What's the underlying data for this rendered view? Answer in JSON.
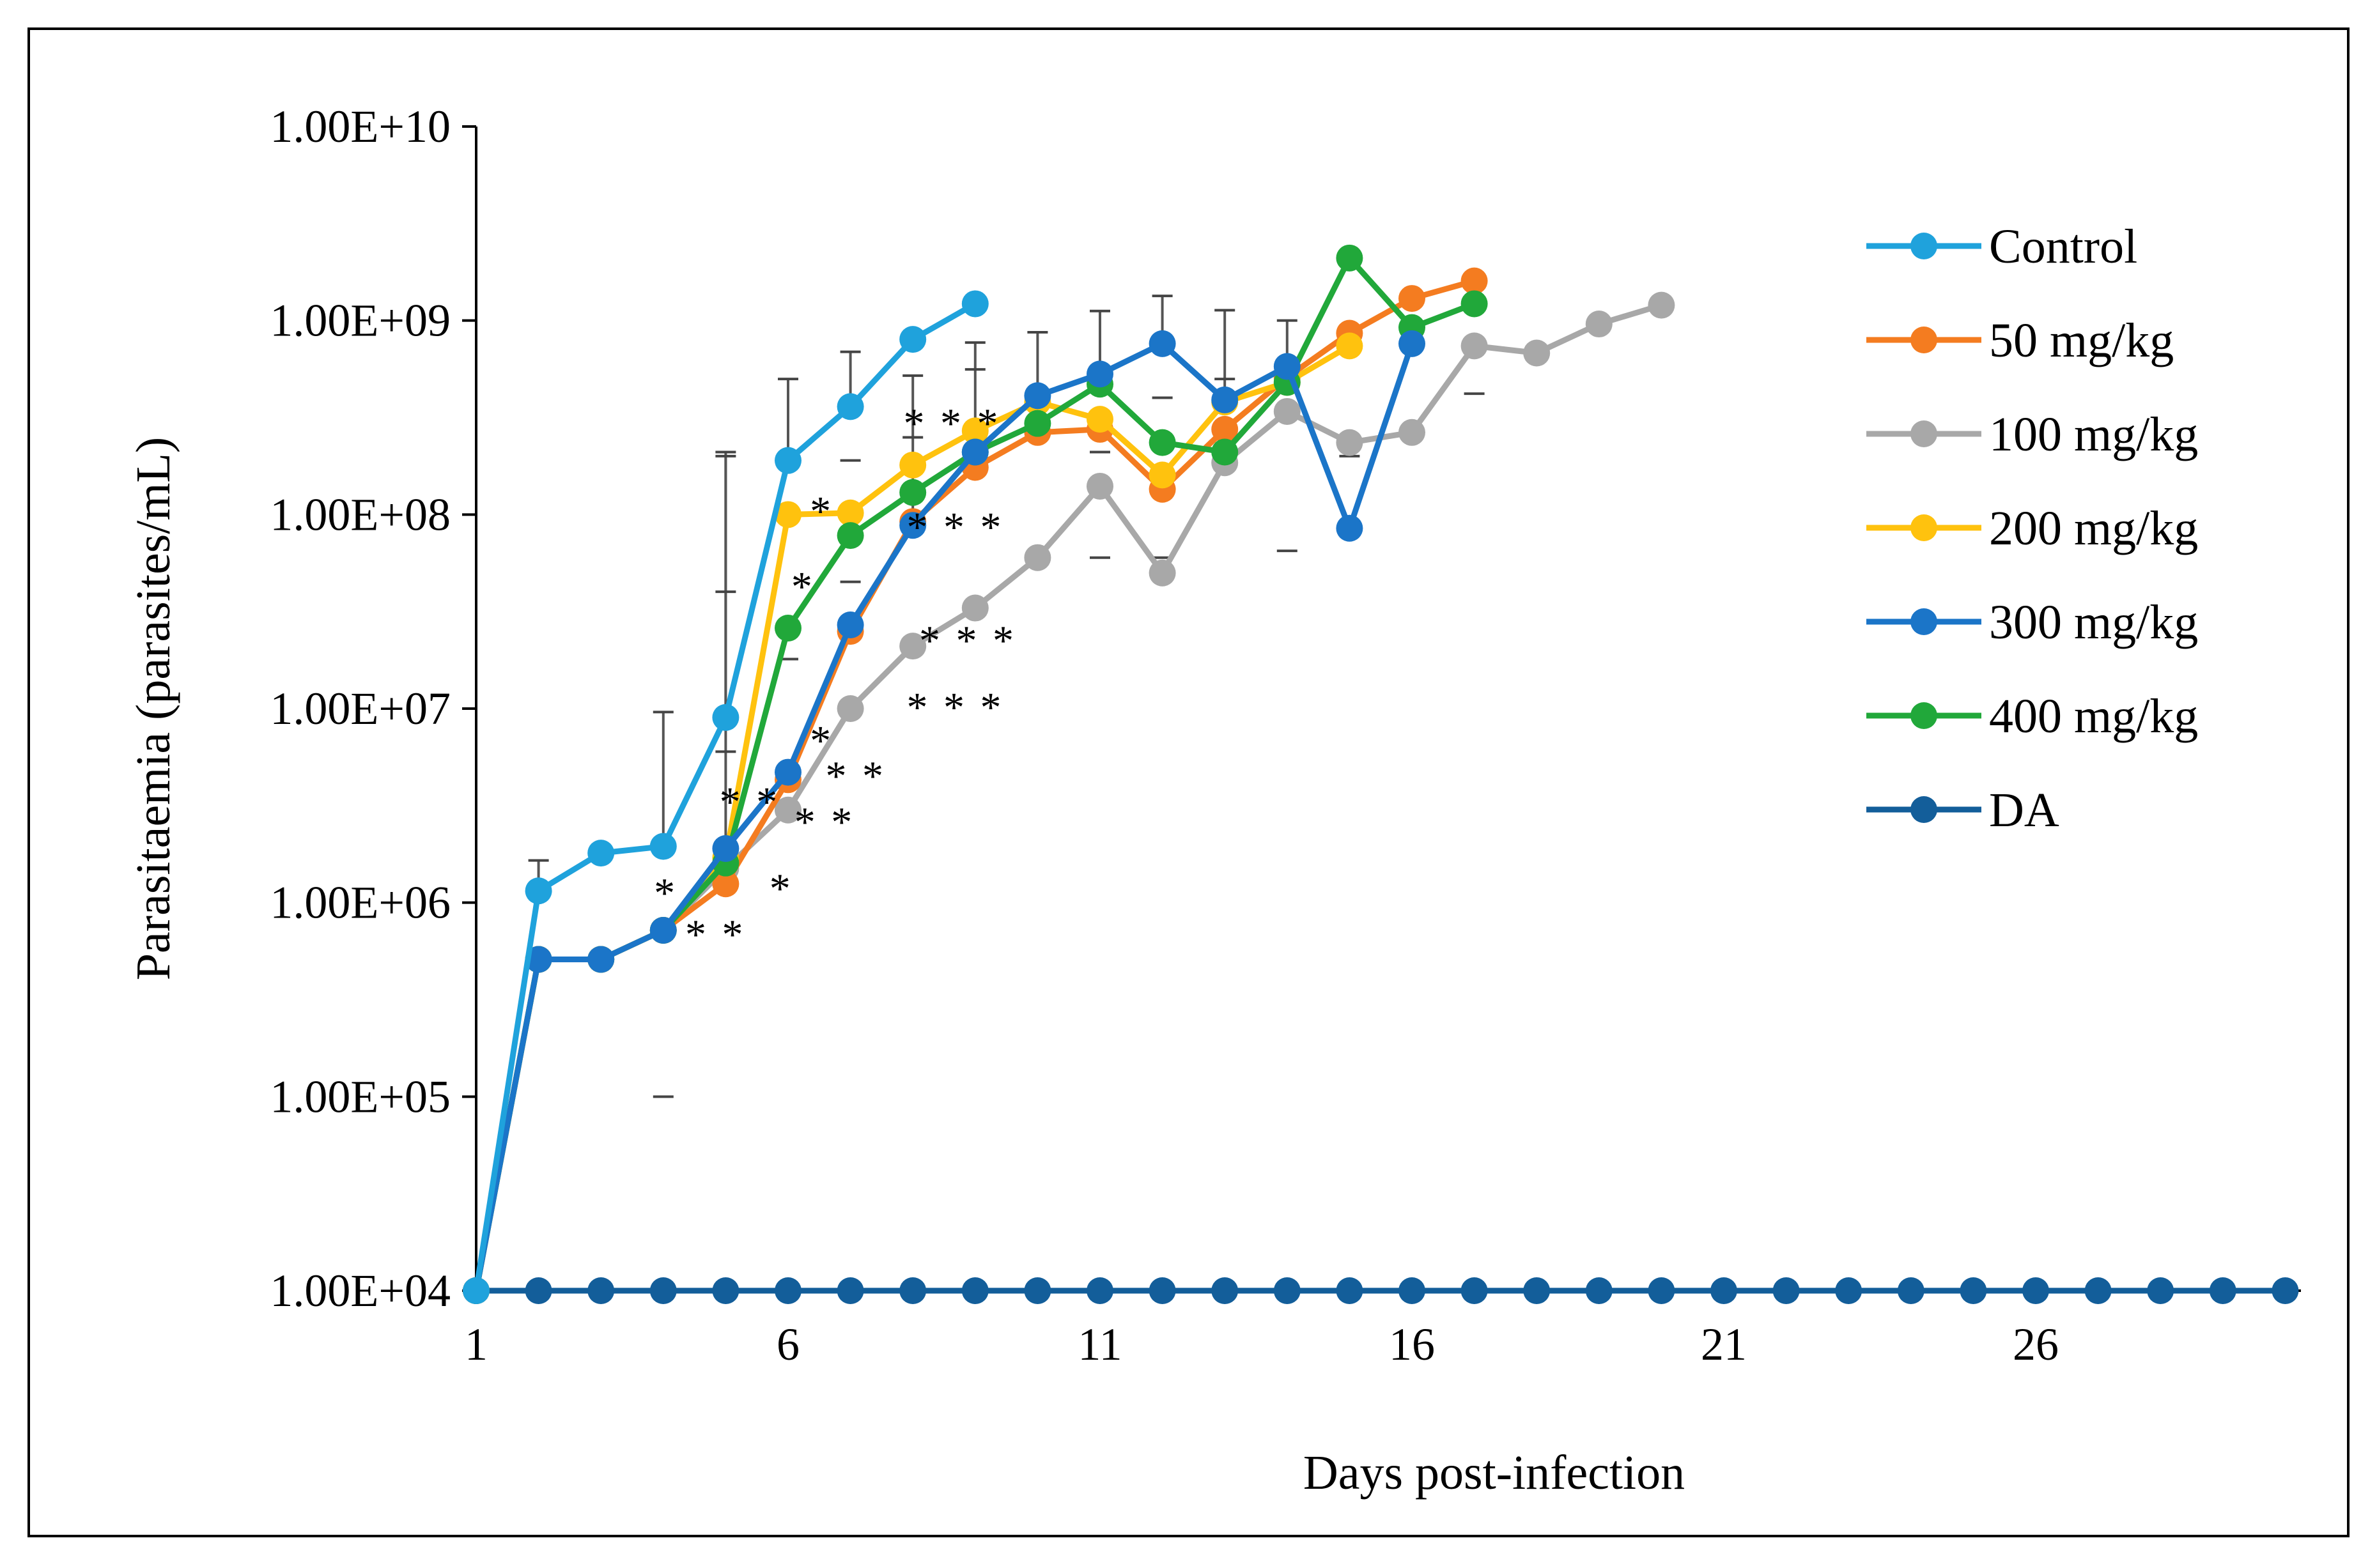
{
  "chart_data": {
    "type": "line",
    "title": "",
    "xlabel": "Days post-infection",
    "ylabel": "Parasitaemia (parasites/mL)",
    "yscale": "log",
    "ylim": [
      10000,
      10000000000
    ],
    "xlim": [
      1,
      30
    ],
    "x_ticks": [
      1,
      6,
      11,
      16,
      21,
      26
    ],
    "x_tick_labels": [
      "1",
      "6",
      "11",
      "16",
      "21",
      "26"
    ],
    "y_ticks": [
      10000,
      100000,
      1000000,
      10000000,
      100000000,
      1000000000,
      10000000000
    ],
    "y_tick_labels": [
      "1.00E+04",
      "1.00E+05",
      "1.00E+06",
      "1.00E+07",
      "1.00E+08",
      "1.00E+09",
      "1.00E+10"
    ],
    "legend_position": "right",
    "grid": false,
    "series": [
      {
        "name": "Control",
        "color": "#1FA2DC",
        "x": [
          1,
          2,
          3,
          4,
          5,
          6,
          7,
          8,
          9
        ],
        "values": [
          10000,
          1150000,
          1800000,
          1950000,
          9000000,
          190000000,
          360000000,
          800000000,
          1220000000
        ],
        "error_upper": [
          null,
          1650000,
          1900000,
          9600000,
          210000000,
          500000000,
          690000000,
          null,
          null
        ]
      },
      {
        "name": "50 mg/kg",
        "color": "#F47C20",
        "x": [
          1,
          2,
          3,
          4,
          5,
          6,
          7,
          8,
          9,
          10,
          11,
          12,
          13,
          14,
          15,
          16,
          17
        ],
        "values": [
          10000,
          510000,
          510000,
          720000,
          1250000,
          4300000,
          25000000,
          92000000,
          175000000,
          265000000,
          275000000,
          135000000,
          275000000,
          510000000,
          860000000,
          1300000000,
          1600000000
        ],
        "error_upper": [
          null,
          null,
          null,
          null,
          null,
          null,
          null,
          null,
          null,
          null,
          null,
          null,
          null,
          null,
          null,
          null,
          null
        ]
      },
      {
        "name": "100 mg/kg",
        "color": "#A8A8A8",
        "x": [
          1,
          2,
          3,
          4,
          5,
          6,
          7,
          8,
          9,
          10,
          11,
          12,
          13,
          14,
          15,
          16,
          17,
          18,
          19,
          20
        ],
        "values": [
          10000,
          510000,
          510000,
          720000,
          1500000,
          3000000,
          10000000,
          21000000,
          33000000,
          60000000,
          140000000,
          50000000,
          185000000,
          340000000,
          235000000,
          265000000,
          740000000,
          680000000,
          960000000,
          1200000000
        ],
        "error_upper": [
          null,
          null,
          null,
          null,
          null,
          null,
          null,
          null,
          null,
          null,
          null,
          null,
          null,
          null,
          null,
          null,
          null,
          null,
          null,
          null
        ]
      },
      {
        "name": "200 mg/kg",
        "color": "#FFC20E",
        "x": [
          1,
          2,
          3,
          4,
          5,
          6,
          7,
          8,
          9,
          10,
          11,
          12,
          13,
          14,
          15
        ],
        "values": [
          10000,
          510000,
          510000,
          720000,
          1700000,
          100000000,
          102000000,
          180000000,
          270000000,
          380000000,
          310000000,
          160000000,
          380000000,
          480000000,
          740000000
        ],
        "error_upper": [
          null,
          null,
          null,
          null,
          null,
          null,
          null,
          null,
          null,
          null,
          null,
          null,
          null,
          null,
          null
        ]
      },
      {
        "name": "300 mg/kg",
        "color": "#1B75C8",
        "x": [
          1,
          2,
          3,
          4,
          5,
          6,
          7,
          8,
          9,
          10,
          11,
          12,
          13,
          14,
          15,
          16
        ],
        "values": [
          10000,
          510000,
          510000,
          720000,
          1900000,
          4700000,
          27000000,
          88000000,
          210000000,
          410000000,
          530000000,
          760000000,
          390000000,
          580000000,
          85000000,
          760000000
        ],
        "error_upper": [
          null,
          null,
          null,
          null,
          200000000,
          null,
          null,
          520000000,
          770000000,
          870000000,
          1120000000,
          1340000000,
          1130000000,
          1000000000,
          null,
          null
        ]
      },
      {
        "name": "400 mg/kg",
        "color": "#21A83A",
        "x": [
          1,
          2,
          3,
          4,
          5,
          6,
          7,
          8,
          9,
          10,
          11,
          12,
          13,
          14,
          15,
          16,
          17
        ],
        "values": [
          10000,
          510000,
          510000,
          720000,
          1600000,
          26000000,
          78000000,
          130000000,
          210000000,
          295000000,
          470000000,
          235000000,
          210000000,
          480000000,
          2100000000,
          920000000,
          1220000000
        ],
        "error_upper": [
          null,
          null,
          null,
          null,
          null,
          null,
          null,
          null,
          null,
          null,
          null,
          null,
          null,
          null,
          null,
          null,
          null
        ]
      },
      {
        "name": "DA",
        "color": "#135E9A",
        "x": [
          1,
          2,
          3,
          4,
          5,
          6,
          7,
          8,
          9,
          10,
          11,
          12,
          13,
          14,
          15,
          16,
          17,
          18,
          19,
          20,
          21,
          22,
          23,
          24,
          25,
          26,
          27,
          28,
          29,
          30
        ],
        "values": [
          10000,
          10000,
          10000,
          10000,
          10000,
          10000,
          10000,
          10000,
          10000,
          10000,
          10000,
          10000,
          10000,
          10000,
          10000,
          10000,
          10000,
          10000,
          10000,
          10000,
          10000,
          10000,
          10000,
          10000,
          10000,
          10000,
          10000,
          10000,
          10000,
          10000
        ],
        "error_upper": []
      }
    ],
    "error_bars_lower": [
      {
        "x": 4,
        "y": 100000
      },
      {
        "x": 5,
        "y": 6000000
      },
      {
        "x": 5,
        "y": 40000000
      },
      {
        "x": 6,
        "y": 18000000
      },
      {
        "x": 7,
        "y": 45000000
      },
      {
        "x": 7,
        "y": 190000000
      },
      {
        "x": 8,
        "y": 250000000
      },
      {
        "x": 9,
        "y": 560000000
      },
      {
        "x": 11,
        "y": 60000000
      },
      {
        "x": 11,
        "y": 210000000
      },
      {
        "x": 12,
        "y": 60000000
      },
      {
        "x": 12,
        "y": 400000000
      },
      {
        "x": 13,
        "y": 500000000
      },
      {
        "x": 14,
        "y": 65000000
      },
      {
        "x": 15,
        "y": 200000000
      },
      {
        "x": 17,
        "y": 420000000
      }
    ],
    "significance_annotations": [
      {
        "text": "*",
        "x": 3.85,
        "y": 950000
      },
      {
        "text": "* *",
        "x": 4.35,
        "y": 580000
      },
      {
        "text": "* *",
        "x": 4.9,
        "y": 2800000
      },
      {
        "text": "*",
        "x": 5.7,
        "y": 1000000
      },
      {
        "text": "* *",
        "x": 6.1,
        "y": 2200000
      },
      {
        "text": "* *",
        "x": 6.6,
        "y": 3800000
      },
      {
        "text": "*",
        "x": 6.35,
        "y": 5800000
      },
      {
        "text": "*",
        "x": 6.05,
        "y": 36000000
      },
      {
        "text": "*",
        "x": 6.35,
        "y": 88000000
      },
      {
        "text": "* * *",
        "x": 7.9,
        "y": 8600000
      },
      {
        "text": "* * *",
        "x": 8.1,
        "y": 19000000
      },
      {
        "text": "* * *",
        "x": 7.9,
        "y": 73000000
      },
      {
        "text": "* * *",
        "x": 7.85,
        "y": 250000000
      }
    ]
  }
}
